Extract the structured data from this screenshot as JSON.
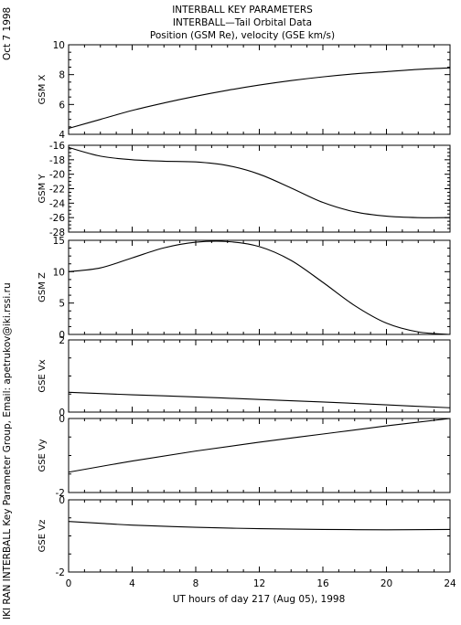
{
  "header": {
    "title_line1": "INTERBALL KEY PARAMETERS",
    "title_line2": "INTERBALL—Tail Orbital Data",
    "title_line3": "Position (GSM Re), velocity (GSE km/s)"
  },
  "side": {
    "date": "Oct  7 1998",
    "credit": "IKI RAN INTERBALL Key Parameter Group, Email: apetrukov@iki.rssi.ru"
  },
  "xaxis": {
    "label": "UT hours of day 217 (Aug 05), 1998",
    "ticks": [
      0,
      4,
      8,
      12,
      16,
      20,
      24
    ]
  },
  "colors": {
    "line": "#000000",
    "axis": "#000000",
    "background": "#ffffff"
  },
  "chart_data": [
    {
      "type": "line",
      "ylabel": "GSM X",
      "xlim": [
        0,
        24
      ],
      "ylim": [
        4,
        10
      ],
      "yticks": [
        4,
        6,
        8,
        10
      ],
      "x": [
        0,
        2,
        4,
        6,
        8,
        10,
        12,
        14,
        16,
        18,
        20,
        22,
        24
      ],
      "values": [
        4.4,
        5.0,
        5.6,
        6.1,
        6.55,
        6.95,
        7.3,
        7.6,
        7.85,
        8.05,
        8.2,
        8.35,
        8.45
      ]
    },
    {
      "type": "line",
      "ylabel": "GSM Y",
      "xlim": [
        0,
        24
      ],
      "ylim": [
        -28,
        -16
      ],
      "yticks": [
        -16,
        -18,
        -20,
        -22,
        -24,
        -26,
        -28
      ],
      "x": [
        0,
        2,
        4,
        6,
        8,
        10,
        12,
        14,
        16,
        18,
        20,
        22,
        24
      ],
      "values": [
        -16.3,
        -17.5,
        -18.0,
        -18.2,
        -18.3,
        -18.8,
        -20.0,
        -21.9,
        -23.9,
        -25.2,
        -25.8,
        -26.0,
        -26.0
      ]
    },
    {
      "type": "line",
      "ylabel": "GSM Z",
      "xlim": [
        0,
        24
      ],
      "ylim": [
        0,
        15
      ],
      "yticks": [
        0,
        5,
        10,
        15
      ],
      "x": [
        0,
        2,
        4,
        6,
        8,
        10,
        12,
        14,
        16,
        18,
        20,
        22,
        24
      ],
      "values": [
        10.0,
        10.6,
        12.2,
        13.8,
        14.7,
        14.8,
        14.0,
        11.8,
        8.3,
        4.6,
        1.8,
        0.4,
        0.0
      ]
    },
    {
      "type": "line",
      "ylabel": "GSE Vx",
      "xlim": [
        0,
        24
      ],
      "ylim": [
        0,
        2
      ],
      "yticks": [
        0,
        2
      ],
      "x": [
        0,
        4,
        8,
        12,
        16,
        20,
        24
      ],
      "values": [
        0.55,
        0.48,
        0.42,
        0.35,
        0.28,
        0.2,
        0.12
      ]
    },
    {
      "type": "line",
      "ylabel": "GSE Vy",
      "xlim": [
        0,
        24
      ],
      "ylim": [
        -2,
        0
      ],
      "yticks": [
        -2,
        0
      ],
      "x": [
        0,
        4,
        8,
        12,
        16,
        20,
        24
      ],
      "values": [
        -1.45,
        -1.15,
        -0.88,
        -0.64,
        -0.42,
        -0.2,
        0.0
      ]
    },
    {
      "type": "line",
      "ylabel": "GSE Vz",
      "xlim": [
        0,
        24
      ],
      "ylim": [
        -2,
        0
      ],
      "yticks": [
        -2,
        0
      ],
      "x": [
        0,
        2,
        4,
        8,
        12,
        16,
        20,
        24
      ],
      "values": [
        -0.6,
        -0.65,
        -0.7,
        -0.76,
        -0.8,
        -0.82,
        -0.83,
        -0.82
      ]
    }
  ]
}
